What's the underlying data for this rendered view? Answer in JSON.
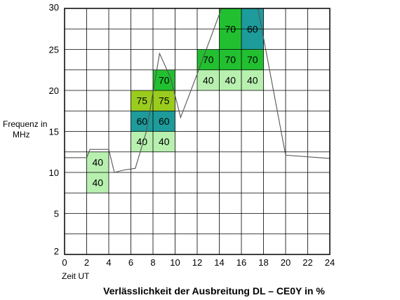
{
  "chart_data": {
    "type": "heatmap",
    "title": "Verlässlichkeit der Ausbreitung DL – CE0Y in %",
    "ylabel_lines": [
      "Frequenz in",
      "MHz"
    ],
    "xlabel": "Zeit UT",
    "x_ticks": [
      "0",
      "2",
      "4",
      "6",
      "8",
      "10",
      "12",
      "14",
      "16",
      "18",
      "20",
      "22",
      "24"
    ],
    "y_ticks": [
      {
        "label": "2",
        "value": 2
      },
      {
        "label": "5",
        "value": 5
      },
      {
        "label": "10",
        "value": 10
      },
      {
        "label": "15",
        "value": 15
      },
      {
        "label": "20",
        "value": 20
      },
      {
        "label": "25",
        "value": 25
      },
      {
        "label": "30",
        "value": 30
      }
    ],
    "xlim": [
      0,
      24
    ],
    "ylim": [
      0,
      30
    ],
    "grid": true,
    "colors": {
      "40": "#b8f0b0",
      "60": "#1e9b9b",
      "70": "#22c030",
      "75": "#9acc1e"
    },
    "cells": [
      {
        "x0": 2,
        "x1": 4,
        "y0": 7.5,
        "y1": 10,
        "value": "40"
      },
      {
        "x0": 2,
        "x1": 4,
        "y0": 10,
        "y1": 12.5,
        "value": "40"
      },
      {
        "x0": 6,
        "x1": 8,
        "y0": 12.5,
        "y1": 15,
        "value": "40"
      },
      {
        "x0": 8,
        "x1": 10,
        "y0": 12.5,
        "y1": 15,
        "value": "40"
      },
      {
        "x0": 6,
        "x1": 8,
        "y0": 15,
        "y1": 17.5,
        "value": "60"
      },
      {
        "x0": 8,
        "x1": 10,
        "y0": 15,
        "y1": 17.5,
        "value": "60"
      },
      {
        "x0": 6,
        "x1": 8,
        "y0": 17.5,
        "y1": 20,
        "value": "75"
      },
      {
        "x0": 8,
        "x1": 10,
        "y0": 17.5,
        "y1": 20,
        "value": "75"
      },
      {
        "x0": 8,
        "x1": 10,
        "y0": 20,
        "y1": 22.5,
        "value": "70"
      },
      {
        "x0": 12,
        "x1": 14,
        "y0": 20,
        "y1": 22.5,
        "value": "40"
      },
      {
        "x0": 14,
        "x1": 16,
        "y0": 20,
        "y1": 22.5,
        "value": "40"
      },
      {
        "x0": 16,
        "x1": 18,
        "y0": 20,
        "y1": 22.5,
        "value": "40"
      },
      {
        "x0": 12,
        "x1": 14,
        "y0": 22.5,
        "y1": 25,
        "value": "70"
      },
      {
        "x0": 14,
        "x1": 16,
        "y0": 22.5,
        "y1": 25,
        "value": "70"
      },
      {
        "x0": 16,
        "x1": 18,
        "y0": 22.5,
        "y1": 25,
        "value": "70"
      },
      {
        "x0": 14,
        "x1": 16,
        "y0": 25,
        "y1": 30,
        "value": "70"
      },
      {
        "x0": 16,
        "x1": 18,
        "y0": 25,
        "y1": 30,
        "value": "60"
      }
    ],
    "line": {
      "x": [
        0,
        2,
        2.3,
        4,
        4.5,
        5.4,
        6.4,
        7.4,
        8.6,
        9.6,
        10.5,
        12.0,
        14.2,
        17.5,
        20.0,
        24.0
      ],
      "y": [
        11.8,
        11.8,
        12.8,
        12.8,
        10.0,
        10.3,
        10.5,
        15.0,
        24.5,
        21.5,
        16.7,
        22.0,
        30.0,
        30.0,
        12.1,
        11.7
      ]
    }
  }
}
